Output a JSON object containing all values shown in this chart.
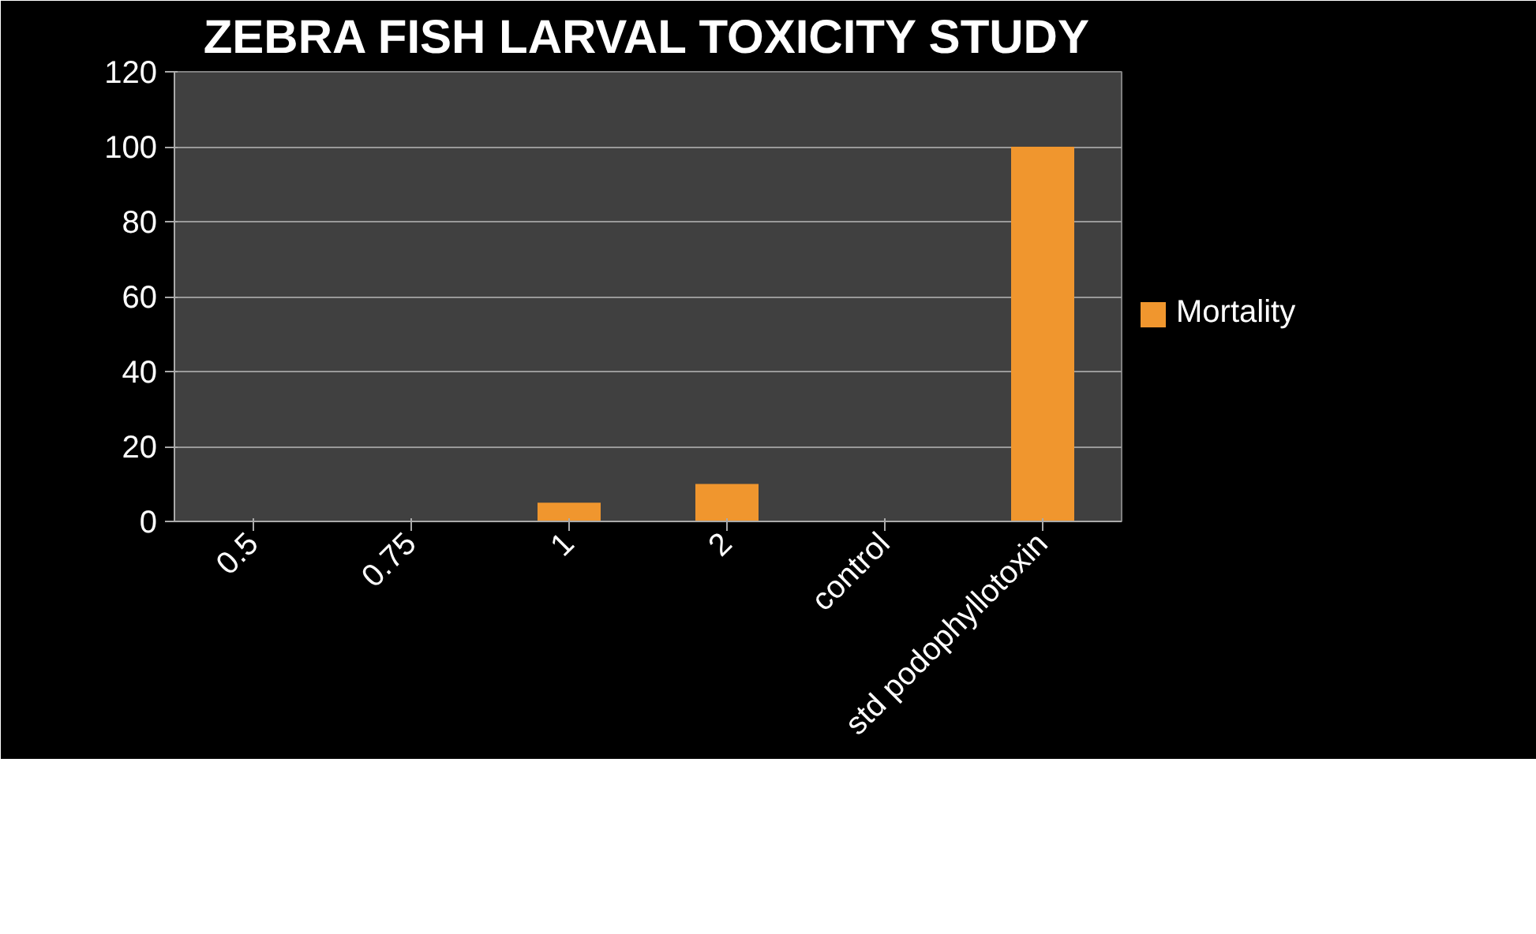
{
  "chart_data": {
    "type": "bar",
    "title": "ZEBRA FISH LARVAL TOXICITY STUDY",
    "categories": [
      "0.5",
      "0.75",
      "1",
      "2",
      "control",
      "std podophyllotoxin"
    ],
    "series": [
      {
        "name": "Mortality",
        "color": "#f0962e",
        "values": [
          0,
          0,
          5,
          10,
          0,
          100
        ]
      }
    ],
    "ylim": [
      0,
      120
    ],
    "yticks": [
      0,
      20,
      40,
      60,
      80,
      100,
      120
    ],
    "grid": "y",
    "legend": "right"
  }
}
